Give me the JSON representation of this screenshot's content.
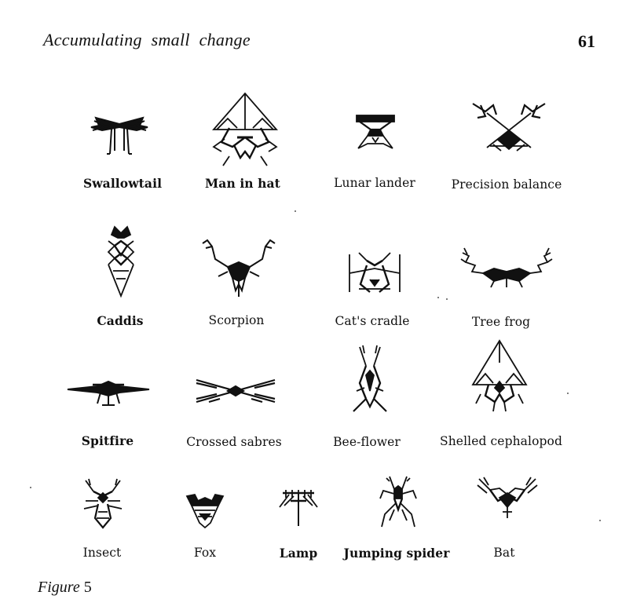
{
  "header": {
    "running_head": "Accumulating small change",
    "page_number": "61"
  },
  "figure": {
    "caption_prefix": "Figure",
    "caption_number": "5",
    "biomorphs": [
      {
        "label": "Swallowtail"
      },
      {
        "label": "Man in hat"
      },
      {
        "label": "Lunar lander"
      },
      {
        "label": "Precision balance"
      },
      {
        "label": "Caddis"
      },
      {
        "label": "Scorpion"
      },
      {
        "label": "Cat's cradle"
      },
      {
        "label": "Tree frog"
      },
      {
        "label": "Spitfire"
      },
      {
        "label": "Crossed sabres"
      },
      {
        "label": "Bee-flower"
      },
      {
        "label": "Shelled cephalopod"
      },
      {
        "label": "Insect"
      },
      {
        "label": "Fox"
      },
      {
        "label": "Lamp"
      },
      {
        "label": "Jumping spider"
      },
      {
        "label": "Bat"
      }
    ]
  }
}
